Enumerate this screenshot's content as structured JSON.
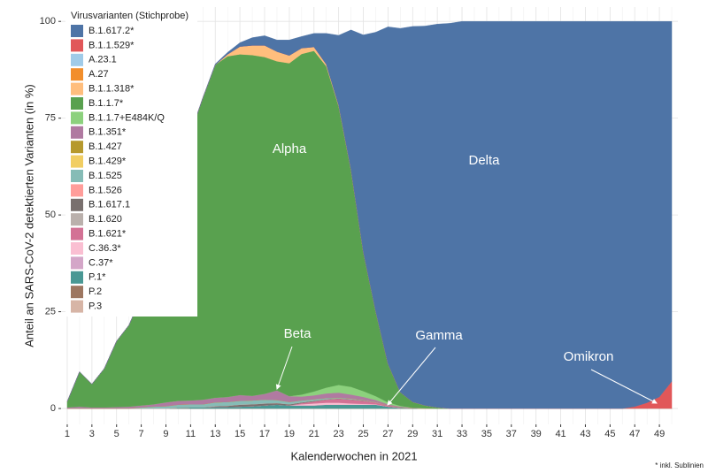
{
  "chart_data": {
    "type": "stacked-area",
    "y_label": "Anteil an SARS-CoV-2 detektierten Varianten (in %)",
    "x_label": "Kalenderwochen in 2021",
    "footnote": "* inkl. Sublinien",
    "legend_title": "Virusvarianten (Stichprobe)",
    "legend": "top-left",
    "grid": true,
    "x": [
      1,
      2,
      3,
      4,
      5,
      6,
      7,
      8,
      9,
      10,
      11,
      12,
      13,
      14,
      15,
      16,
      17,
      18,
      19,
      20,
      21,
      22,
      23,
      24,
      25,
      26,
      27,
      28,
      29,
      30,
      31,
      32,
      33,
      34,
      35,
      36,
      37,
      38,
      39,
      40,
      41,
      42,
      43,
      44,
      45,
      46,
      47,
      48,
      49,
      50
    ],
    "xlim": [
      0.5,
      50.5
    ],
    "xticks": [
      1,
      3,
      5,
      7,
      9,
      11,
      13,
      15,
      17,
      19,
      21,
      23,
      25,
      27,
      29,
      31,
      33,
      35,
      37,
      39,
      41,
      43,
      45,
      47,
      49
    ],
    "ylim": [
      -4.1,
      103.7
    ],
    "yticks": [
      0,
      25,
      50,
      75,
      100
    ],
    "annotations": [
      {
        "text": "Alpha"
      },
      {
        "text": "Delta"
      },
      {
        "text": "Beta"
      },
      {
        "text": "Gamma"
      },
      {
        "text": "Omikron"
      }
    ],
    "series": [
      {
        "name": "B.1.617.2*",
        "color": "#4e74a6",
        "values": [
          0,
          0,
          0,
          0,
          0,
          0,
          0,
          0,
          0,
          0,
          0,
          0,
          0.2,
          0.5,
          1,
          2,
          2.5,
          3,
          4,
          3,
          3.5,
          8,
          18,
          36,
          56,
          72,
          87,
          94,
          97,
          98,
          99,
          99.5,
          100,
          100,
          100,
          100,
          100,
          100,
          100,
          100,
          100,
          100,
          100,
          100,
          100,
          100,
          99.5,
          98.5,
          97,
          93
        ]
      },
      {
        "name": "B.1.1.529*",
        "color": "#e15759",
        "values": [
          0,
          0,
          0,
          0,
          0,
          0,
          0,
          0,
          0,
          0,
          0,
          0,
          0,
          0,
          0,
          0,
          0,
          0,
          0,
          0,
          0,
          0,
          0,
          0,
          0,
          0,
          0,
          0,
          0,
          0,
          0,
          0,
          0,
          0,
          0,
          0,
          0,
          0,
          0,
          0,
          0,
          0,
          0,
          0,
          0,
          0,
          0.5,
          1.5,
          3,
          7
        ]
      },
      {
        "name": "A.23.1",
        "color": "#a0cbe8",
        "values": [
          0,
          0,
          0,
          0,
          0,
          0,
          0,
          0,
          0,
          0,
          0,
          0,
          0,
          0,
          0,
          0,
          0,
          0,
          0,
          0,
          0,
          0,
          0,
          0,
          0,
          0,
          0,
          0,
          0,
          0,
          0,
          0,
          0,
          0,
          0,
          0,
          0,
          0,
          0,
          0,
          0,
          0,
          0,
          0,
          0,
          0,
          0,
          0,
          0,
          0
        ]
      },
      {
        "name": "A.27",
        "color": "#f28e2b",
        "values": [
          0,
          0,
          0,
          0,
          0,
          0,
          0,
          0,
          0,
          0,
          0,
          0,
          0,
          0,
          0,
          0,
          0,
          0,
          0,
          0,
          0,
          0,
          0,
          0,
          0,
          0,
          0,
          0,
          0,
          0,
          0,
          0,
          0,
          0,
          0,
          0,
          0,
          0,
          0,
          0,
          0,
          0,
          0,
          0,
          0,
          0,
          0,
          0,
          0,
          0
        ]
      },
      {
        "name": "B.1.1.318*",
        "color": "#ffbe7d",
        "values": [
          0,
          0,
          0,
          0,
          0,
          0,
          0,
          0,
          0,
          0,
          0,
          0,
          0,
          0.5,
          2,
          2.5,
          3,
          2.5,
          2,
          1.5,
          1,
          0.5,
          0.3,
          0.2,
          0,
          0,
          0,
          0,
          0,
          0,
          0,
          0,
          0,
          0,
          0,
          0,
          0,
          0,
          0,
          0,
          0,
          0,
          0,
          0,
          0,
          0,
          0,
          0,
          0,
          0
        ]
      },
      {
        "name": "B.1.1.7*",
        "color": "#59a14f",
        "values": [
          1.5,
          9,
          6,
          10,
          17,
          21,
          28,
          38,
          50,
          60,
          69,
          78,
          86,
          88,
          88,
          88,
          87,
          85,
          86,
          88,
          88,
          83,
          72,
          56,
          36,
          22,
          10,
          3.5,
          1.5,
          0.7,
          0.3,
          0,
          0,
          0,
          0,
          0,
          0,
          0,
          0,
          0,
          0,
          0,
          0,
          0,
          0,
          0,
          0,
          0,
          0,
          0
        ]
      },
      {
        "name": "B.1.1.7+E484K/Q",
        "color": "#8cd17d",
        "values": [
          0,
          0,
          0,
          0,
          0,
          0,
          0,
          0,
          0,
          0,
          0,
          0,
          0,
          0,
          0,
          0,
          0,
          0,
          0,
          0.5,
          1,
          1.5,
          2,
          2,
          1.5,
          1,
          0.5,
          0.2,
          0,
          0,
          0,
          0,
          0,
          0,
          0,
          0,
          0,
          0,
          0,
          0,
          0,
          0,
          0,
          0,
          0,
          0,
          0,
          0,
          0,
          0
        ]
      },
      {
        "name": "B.1.351*",
        "color": "#b07aa1",
        "values": [
          0.3,
          0.5,
          0.3,
          0.3,
          0.4,
          0.5,
          0.5,
          0.6,
          1,
          1,
          1,
          1.2,
          1.2,
          1.3,
          1.5,
          1.2,
          1.5,
          2.5,
          1.5,
          1,
          1,
          1.2,
          1.3,
          1,
          0.8,
          0.5,
          0.3,
          0.2,
          0.1,
          0.1,
          0,
          0,
          0,
          0,
          0,
          0,
          0,
          0,
          0,
          0,
          0,
          0,
          0,
          0,
          0,
          0,
          0,
          0,
          0,
          0
        ]
      },
      {
        "name": "B.1.427",
        "color": "#b6992d",
        "values": [
          0,
          0,
          0,
          0,
          0,
          0,
          0,
          0,
          0,
          0,
          0,
          0,
          0,
          0,
          0,
          0,
          0,
          0,
          0,
          0,
          0,
          0,
          0,
          0,
          0,
          0,
          0,
          0,
          0,
          0,
          0,
          0,
          0,
          0,
          0,
          0,
          0,
          0,
          0,
          0,
          0,
          0,
          0,
          0,
          0,
          0,
          0,
          0,
          0,
          0
        ]
      },
      {
        "name": "B.1.429*",
        "color": "#f1ce63",
        "values": [
          0,
          0,
          0,
          0,
          0,
          0,
          0,
          0,
          0,
          0,
          0,
          0,
          0,
          0,
          0,
          0,
          0,
          0,
          0,
          0,
          0,
          0,
          0,
          0,
          0,
          0,
          0,
          0,
          0,
          0,
          0,
          0,
          0,
          0,
          0,
          0,
          0,
          0,
          0,
          0,
          0,
          0,
          0,
          0,
          0,
          0,
          0,
          0,
          0,
          0
        ]
      },
      {
        "name": "B.1.525",
        "color": "#86bcb6",
        "values": [
          0,
          0,
          0,
          0,
          0,
          0,
          0.3,
          0.5,
          0.6,
          0.8,
          0.8,
          0.8,
          1,
          1,
          1,
          1,
          1,
          0.8,
          0.6,
          0.5,
          0.4,
          0.3,
          0.2,
          0.2,
          0.1,
          0.1,
          0,
          0,
          0,
          0,
          0,
          0,
          0,
          0,
          0,
          0,
          0,
          0,
          0,
          0,
          0,
          0,
          0,
          0,
          0,
          0,
          0,
          0,
          0,
          0
        ]
      },
      {
        "name": "B.1.526",
        "color": "#ff9d9a",
        "values": [
          0,
          0,
          0,
          0,
          0,
          0,
          0,
          0,
          0,
          0,
          0,
          0,
          0,
          0,
          0,
          0,
          0,
          0,
          0,
          0,
          0,
          0,
          0,
          0,
          0,
          0,
          0,
          0,
          0,
          0,
          0,
          0,
          0,
          0,
          0,
          0,
          0,
          0,
          0,
          0,
          0,
          0,
          0,
          0,
          0,
          0,
          0,
          0,
          0,
          0
        ]
      },
      {
        "name": "B.1.617.1",
        "color": "#79706e",
        "values": [
          0,
          0,
          0,
          0,
          0,
          0,
          0,
          0,
          0,
          0,
          0,
          0,
          0.2,
          0.3,
          0.5,
          0.5,
          0.5,
          0.4,
          0.3,
          0.2,
          0.2,
          0.1,
          0.1,
          0.1,
          0.1,
          0,
          0,
          0,
          0,
          0,
          0,
          0,
          0,
          0,
          0,
          0,
          0,
          0,
          0,
          0,
          0,
          0,
          0,
          0,
          0,
          0,
          0,
          0,
          0,
          0
        ]
      },
      {
        "name": "B.1.620",
        "color": "#bab0ac",
        "values": [
          0,
          0,
          0,
          0,
          0,
          0,
          0,
          0,
          0,
          0,
          0,
          0,
          0,
          0,
          0,
          0,
          0,
          0,
          0,
          0,
          0,
          0,
          0,
          0,
          0,
          0,
          0,
          0,
          0,
          0,
          0,
          0,
          0,
          0,
          0,
          0,
          0,
          0,
          0,
          0,
          0,
          0,
          0,
          0,
          0,
          0,
          0,
          0,
          0,
          0
        ]
      },
      {
        "name": "B.1.621*",
        "color": "#d37295",
        "values": [
          0,
          0,
          0,
          0,
          0,
          0,
          0,
          0,
          0,
          0,
          0,
          0,
          0,
          0,
          0,
          0,
          0,
          0,
          0,
          0.3,
          0.5,
          0.8,
          1,
          1,
          0.8,
          0.5,
          0.3,
          0.1,
          0,
          0,
          0,
          0,
          0,
          0,
          0,
          0,
          0,
          0,
          0,
          0,
          0,
          0,
          0,
          0,
          0,
          0,
          0,
          0,
          0,
          0
        ]
      },
      {
        "name": "C.36.3*",
        "color": "#fabfd2",
        "values": [
          0,
          0,
          0,
          0,
          0,
          0,
          0,
          0,
          0,
          0,
          0,
          0,
          0,
          0,
          0,
          0,
          0,
          0,
          0,
          0.3,
          0.5,
          0.5,
          0.5,
          0.3,
          0.2,
          0.1,
          0,
          0,
          0,
          0,
          0,
          0,
          0,
          0,
          0,
          0,
          0,
          0,
          0,
          0,
          0,
          0,
          0,
          0,
          0,
          0,
          0,
          0,
          0,
          0
        ]
      },
      {
        "name": "C.37*",
        "color": "#d4a6c8",
        "values": [
          0,
          0,
          0,
          0,
          0,
          0,
          0,
          0,
          0,
          0,
          0,
          0,
          0,
          0,
          0,
          0,
          0,
          0,
          0,
          0,
          0,
          0,
          0,
          0,
          0,
          0,
          0,
          0,
          0,
          0,
          0,
          0,
          0,
          0,
          0,
          0,
          0,
          0,
          0,
          0,
          0,
          0,
          0,
          0,
          0,
          0,
          0,
          0,
          0,
          0
        ]
      },
      {
        "name": "P.1*",
        "color": "#499894",
        "values": [
          0,
          0,
          0,
          0,
          0,
          0,
          0,
          0,
          0,
          0.2,
          0.3,
          0.3,
          0.4,
          0.4,
          0.5,
          0.6,
          0.8,
          1,
          0.8,
          0.8,
          0.8,
          1,
          1,
          1,
          1,
          1,
          0.5,
          0.2,
          0.1,
          0,
          0,
          0,
          0,
          0,
          0,
          0,
          0,
          0,
          0,
          0,
          0,
          0,
          0,
          0,
          0,
          0,
          0,
          0,
          0,
          0
        ]
      },
      {
        "name": "P.2",
        "color": "#9d7660",
        "values": [
          0,
          0,
          0,
          0,
          0,
          0,
          0,
          0,
          0,
          0,
          0,
          0,
          0,
          0,
          0,
          0,
          0,
          0,
          0,
          0,
          0,
          0,
          0,
          0,
          0,
          0,
          0,
          0,
          0,
          0,
          0,
          0,
          0,
          0,
          0,
          0,
          0,
          0,
          0,
          0,
          0,
          0,
          0,
          0,
          0,
          0,
          0,
          0,
          0,
          0
        ]
      },
      {
        "name": "P.3",
        "color": "#d7b5a6",
        "values": [
          0,
          0,
          0,
          0,
          0,
          0,
          0,
          0,
          0,
          0,
          0,
          0,
          0,
          0,
          0,
          0,
          0,
          0,
          0,
          0,
          0,
          0,
          0,
          0,
          0,
          0,
          0,
          0,
          0,
          0,
          0,
          0,
          0,
          0,
          0,
          0,
          0,
          0,
          0,
          0,
          0,
          0,
          0,
          0,
          0,
          0,
          0,
          0,
          0,
          0
        ]
      }
    ]
  }
}
